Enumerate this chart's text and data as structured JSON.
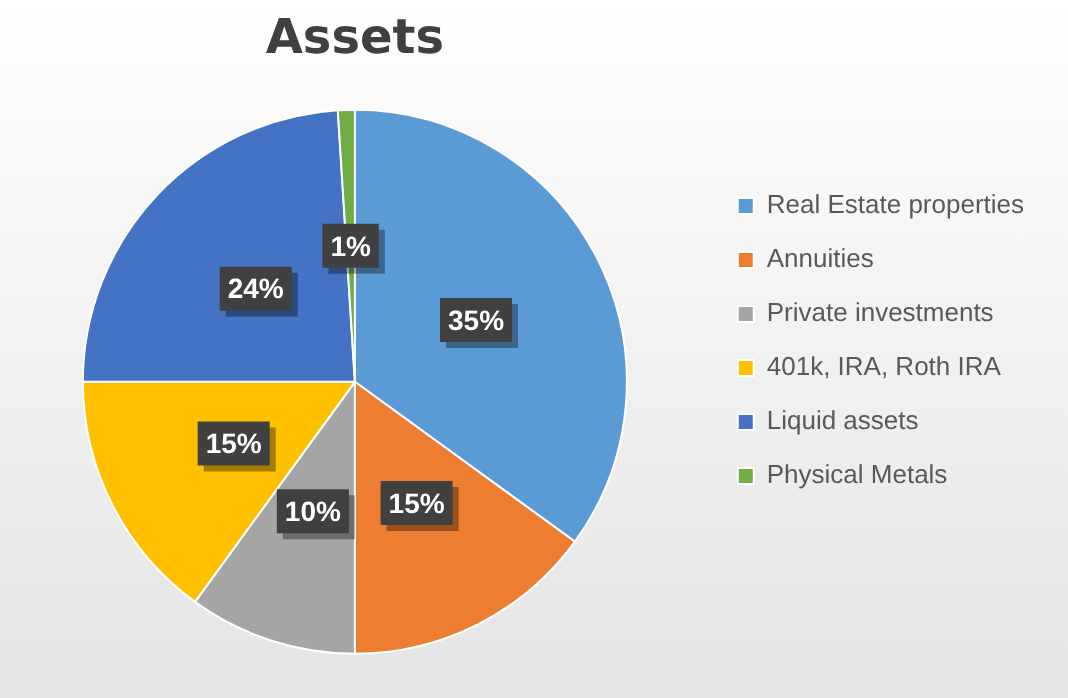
{
  "chart_data": {
    "type": "pie",
    "title": "Assets",
    "categories": [
      "Real Estate properties",
      "Annuities",
      "Private investments",
      "401k, IRA, Roth IRA",
      "Liquid assets",
      "Physical Metals"
    ],
    "values": [
      35,
      15,
      10,
      15,
      24,
      1
    ],
    "colors": [
      "#5b9bd5",
      "#ed7d31",
      "#a5a5a5",
      "#ffc000",
      "#4472c4",
      "#70ad47"
    ],
    "value_labels": [
      "35%",
      "15%",
      "10%",
      "15%",
      "24%",
      "1%"
    ],
    "legend": "right"
  }
}
